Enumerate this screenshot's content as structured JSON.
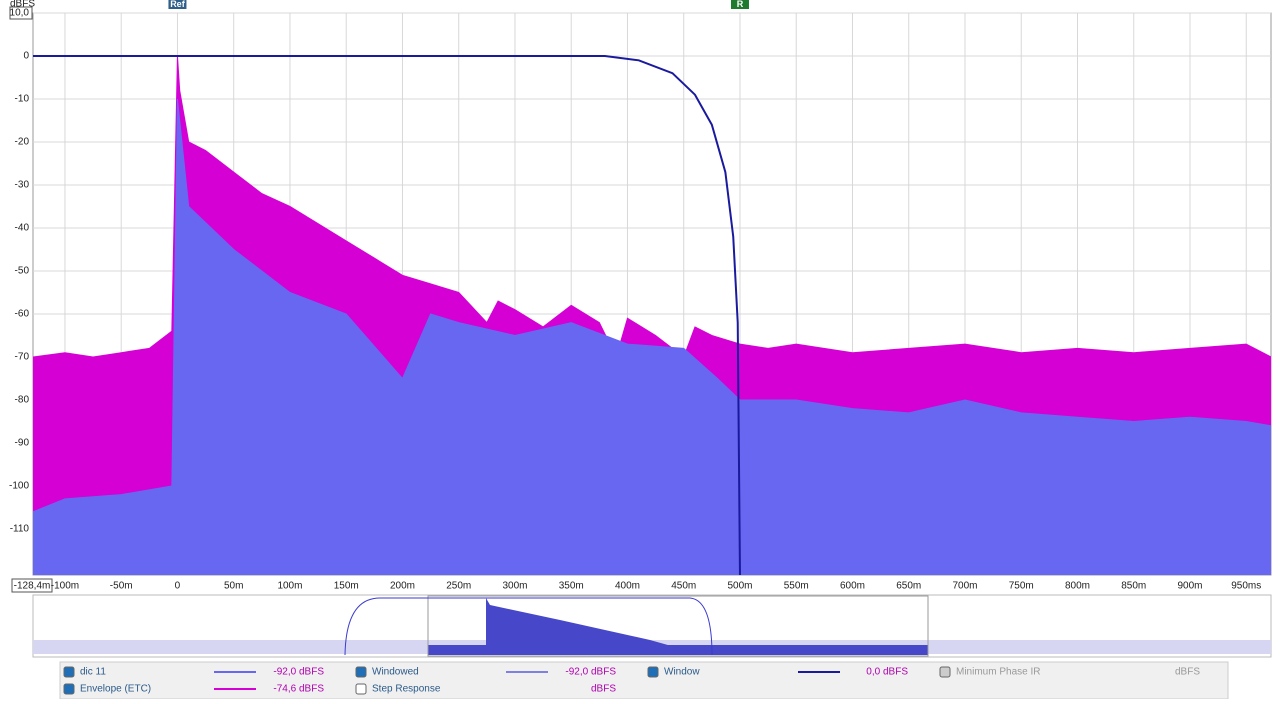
{
  "chart_data": {
    "type": "area",
    "y_unit": "dBFS",
    "xlim": [
      -128.4,
      972
    ],
    "ylim": [
      -120.7,
      10
    ],
    "xticks": [
      {
        "value": -128.4,
        "label": "-128,4m"
      },
      {
        "value": -100,
        "label": "-100m"
      },
      {
        "value": -50,
        "label": "-50m"
      },
      0,
      {
        "value": 50,
        "label": "50m"
      },
      {
        "value": 100,
        "label": "100m"
      },
      {
        "value": 150,
        "label": "150m"
      },
      {
        "value": 200,
        "label": "200m"
      },
      {
        "value": 250,
        "label": "250m"
      },
      {
        "value": 300,
        "label": "300m"
      },
      {
        "value": 350,
        "label": "350m"
      },
      {
        "value": 400,
        "label": "400m"
      },
      {
        "value": 450,
        "label": "450m"
      },
      {
        "value": 500,
        "label": "500m"
      },
      {
        "value": 550,
        "label": "550m"
      },
      {
        "value": 600,
        "label": "600m"
      },
      {
        "value": 650,
        "label": "650m"
      },
      {
        "value": 700,
        "label": "700m"
      },
      {
        "value": 750,
        "label": "750m"
      },
      {
        "value": 800,
        "label": "800m"
      },
      {
        "value": 850,
        "label": "850m"
      },
      {
        "value": 900,
        "label": "900m"
      },
      {
        "value": 950,
        "label": "950ms"
      }
    ],
    "yticks": [
      {
        "value": 10,
        "label": "10,0"
      },
      0,
      -10,
      -20,
      -30,
      -40,
      -50,
      -60,
      -70,
      -80,
      -90,
      -100,
      -110
    ],
    "grid": true,
    "markers": [
      {
        "label": "Ref",
        "x": 0,
        "color": "#2f5f8a"
      },
      {
        "label": "R",
        "x": 500,
        "color": "#1f7a2f"
      }
    ],
    "series": [
      {
        "name": "Envelope (ETC)",
        "color": "#d400d4",
        "readout": "-74,6 dBFS",
        "x": [
          -128.4,
          -100,
          -75,
          -50,
          -25,
          -5,
          0,
          2,
          10,
          25,
          50,
          75,
          100,
          125,
          150,
          175,
          200,
          225,
          250,
          275,
          285,
          300,
          325,
          350,
          375,
          390,
          400,
          425,
          450,
          460,
          475,
          500,
          525,
          550,
          600,
          650,
          700,
          750,
          800,
          850,
          900,
          950,
          972
        ],
        "values": [
          -70,
          -69,
          -70,
          -69,
          -68,
          -64,
          0,
          -8,
          -20,
          -22,
          -27,
          -32,
          -35,
          -39,
          -43,
          -47,
          -51,
          -53,
          -55,
          -62,
          -57,
          -59,
          -63,
          -58,
          -62,
          -70,
          -61,
          -65,
          -70,
          -63,
          -65,
          -67,
          -68,
          -67,
          -69,
          -68,
          -67,
          -69,
          -68,
          -69,
          -68,
          -67,
          -70
        ]
      },
      {
        "name": "dic 11",
        "color": "#6767f2",
        "readout": "-92,0 dBFS",
        "x": [
          -128.4,
          -100,
          -50,
          -5,
          0,
          10,
          50,
          100,
          150,
          200,
          225,
          250,
          300,
          350,
          400,
          450,
          480,
          500,
          550,
          600,
          650,
          700,
          750,
          800,
          850,
          900,
          950,
          972
        ],
        "values": [
          -106,
          -103,
          -102,
          -100,
          -10,
          -35,
          -45,
          -55,
          -60,
          -75,
          -60,
          -62,
          -65,
          -62,
          -67,
          -68,
          -75,
          -80,
          -80,
          -82,
          -83,
          -80,
          -83,
          -84,
          -85,
          -84,
          -85,
          -86
        ]
      },
      {
        "name": "Window",
        "color": "#1a1a9e",
        "readout": "0,0 dBFS",
        "line": true,
        "x": [
          -128.4,
          380,
          410,
          440,
          460,
          475,
          487,
          494,
          498,
          500
        ],
        "values": [
          0,
          0,
          -1,
          -4,
          -9,
          -16,
          -27,
          -42,
          -62,
          -120.7
        ]
      }
    ],
    "legend_extra": [
      {
        "name": "Windowed",
        "readout": "-92,0 dBFS"
      },
      {
        "name": "Minimum Phase IR",
        "readout": "dBFS"
      },
      {
        "name": "Step Response",
        "readout": "dBFS"
      }
    ]
  }
}
